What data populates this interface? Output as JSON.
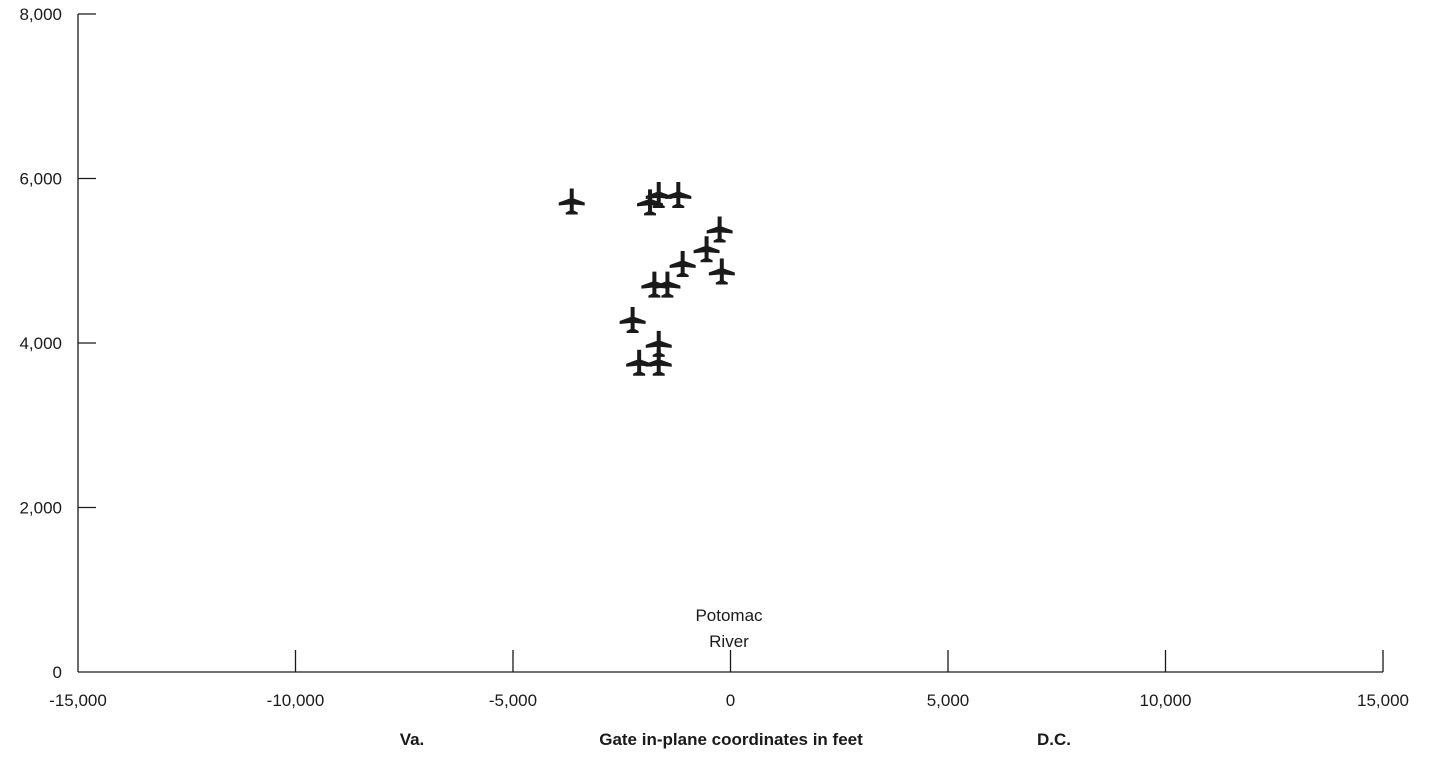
{
  "chart_data": {
    "type": "scatter",
    "title": "",
    "xlabel": "Gate in-plane coordinates in feet",
    "ylabel": "",
    "xlim": [
      -15000,
      15000
    ],
    "ylim": [
      0,
      8000
    ],
    "x_ticks": [
      -15000,
      -10000,
      -5000,
      0,
      5000,
      10000,
      15000
    ],
    "x_tick_labels": [
      "-15,000",
      "-10,000",
      "-5,000",
      "0",
      "5,000",
      "10,000",
      "15,000"
    ],
    "y_ticks": [
      0,
      2000,
      4000,
      6000,
      8000
    ],
    "y_tick_labels": [
      "0",
      "2,000",
      "4,000",
      "6,000",
      "8,000"
    ],
    "grid": false,
    "marker": "airplane-icon",
    "marker_color": "#1a1a1a",
    "points": [
      {
        "x": -3650,
        "y": 5720
      },
      {
        "x": -1850,
        "y": 5710
      },
      {
        "x": -1650,
        "y": 5800
      },
      {
        "x": -1200,
        "y": 5800
      },
      {
        "x": -250,
        "y": 5380
      },
      {
        "x": -550,
        "y": 5140
      },
      {
        "x": -1100,
        "y": 4960
      },
      {
        "x": -200,
        "y": 4870
      },
      {
        "x": -1750,
        "y": 4710
      },
      {
        "x": -1450,
        "y": 4710
      },
      {
        "x": -2250,
        "y": 4280
      },
      {
        "x": -1650,
        "y": 3990
      },
      {
        "x": -2100,
        "y": 3760
      },
      {
        "x": -1650,
        "y": 3760
      }
    ],
    "annotations": {
      "river_line1": "Potomac",
      "river_line2": "River",
      "left_side": "Va.",
      "right_side": "D.C."
    }
  }
}
